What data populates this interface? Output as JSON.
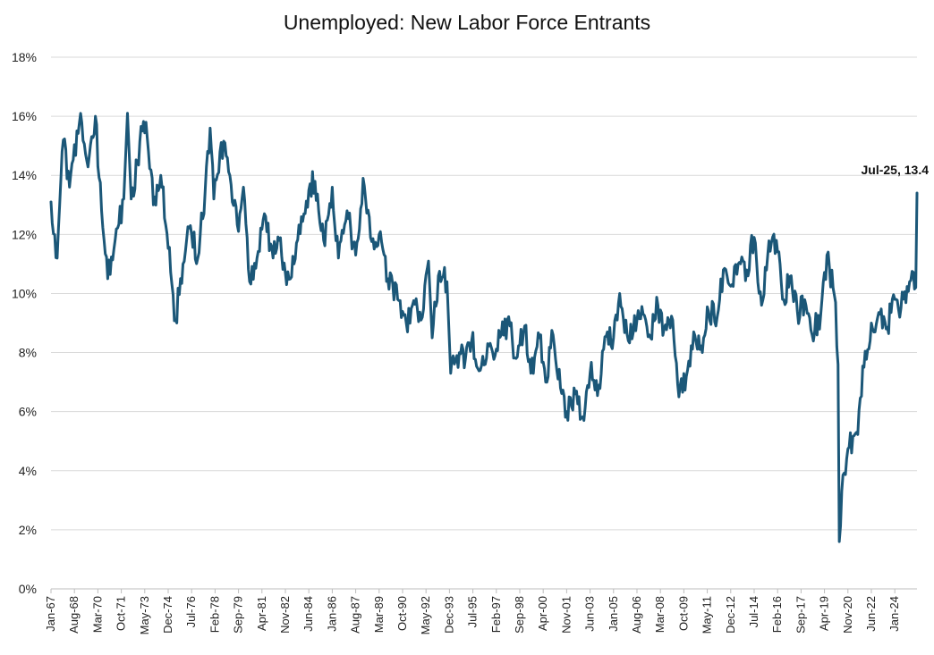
{
  "chart_data": {
    "type": "line",
    "title": "Unemployed: New Labor Force Entrants",
    "xlabel": "",
    "ylabel": "",
    "ylim": [
      0,
      18
    ],
    "y_ticks": [
      "0%",
      "2%",
      "4%",
      "6%",
      "8%",
      "10%",
      "12%",
      "14%",
      "16%",
      "18%"
    ],
    "x_ticks": [
      "Jan-67",
      "Aug-68",
      "Mar-70",
      "Oct-71",
      "May-73",
      "Dec-74",
      "Jul-76",
      "Feb-78",
      "Sep-79",
      "Apr-81",
      "Nov-82",
      "Jun-84",
      "Jan-86",
      "Aug-87",
      "Mar-89",
      "Oct-90",
      "May-92",
      "Dec-93",
      "Jul-95",
      "Feb-97",
      "Sep-98",
      "Apr-00",
      "Nov-01",
      "Jun-03",
      "Jan-05",
      "Aug-06",
      "Mar-08",
      "Oct-09",
      "May-11",
      "Dec-12",
      "Jul-14",
      "Feb-16",
      "Sep-17",
      "Apr-19",
      "Nov-20",
      "Jun-22",
      "Jan-24"
    ],
    "grid": true,
    "legend": "none",
    "line_color": "#1b5778",
    "start": "Jan-67",
    "end": "Jul-25",
    "annotation": "Jul-25, 13.4",
    "series": [
      {
        "anchors": [
          [
            "Jan-67",
            13.1
          ],
          [
            "Jun-67",
            11.2
          ],
          [
            "Nov-67",
            15.2
          ],
          [
            "Apr-68",
            13.6
          ],
          [
            "Jan-69",
            16.1
          ],
          [
            "Jun-69",
            14.5
          ],
          [
            "Jan-70",
            16.0
          ],
          [
            "Jun-70",
            12.8
          ],
          [
            "Nov-70",
            10.5
          ],
          [
            "Apr-71",
            11.5
          ],
          [
            "Dec-71",
            13.2
          ],
          [
            "Mar-72",
            16.1
          ],
          [
            "Jun-72",
            13.2
          ],
          [
            "Mar-73",
            15.5
          ],
          [
            "Jun-73",
            15.8
          ],
          [
            "Dec-73",
            13.0
          ],
          [
            "Jun-74",
            14.0
          ],
          [
            "Jun-75",
            9.1
          ],
          [
            "Dec-75",
            11.0
          ],
          [
            "Jun-76",
            12.3
          ],
          [
            "Dec-76",
            11.2
          ],
          [
            "Jun-77",
            13.5
          ],
          [
            "Oct-77",
            15.6
          ],
          [
            "Jan-78",
            13.2
          ],
          [
            "Jun-78",
            14.8
          ],
          [
            "Oct-78",
            15.1
          ],
          [
            "Feb-79",
            14.0
          ],
          [
            "Sep-79",
            12.1
          ],
          [
            "Jan-80",
            13.6
          ],
          [
            "Jun-80",
            10.4
          ],
          [
            "Dec-80",
            11.2
          ],
          [
            "Jun-81",
            12.7
          ],
          [
            "Jan-82",
            11.2
          ],
          [
            "Jun-82",
            11.8
          ],
          [
            "Dec-82",
            10.3
          ],
          [
            "Jun-83",
            11.0
          ],
          [
            "Dec-83",
            12.6
          ],
          [
            "Jun-84",
            13.5
          ],
          [
            "Nov-84",
            13.8
          ],
          [
            "Jun-85",
            11.8
          ],
          [
            "Jan-86",
            13.6
          ],
          [
            "Jun-86",
            11.2
          ],
          [
            "Jan-87",
            12.8
          ],
          [
            "Aug-87",
            11.3
          ],
          [
            "Feb-88",
            13.9
          ],
          [
            "Aug-88",
            11.9
          ],
          [
            "Mar-89",
            12.0
          ],
          [
            "Oct-89",
            10.5
          ],
          [
            "Jun-90",
            9.8
          ],
          [
            "Jan-91",
            9.0
          ],
          [
            "Jun-91",
            9.6
          ],
          [
            "Jan-92",
            9.1
          ],
          [
            "Jul-92",
            11.1
          ],
          [
            "Oct-92",
            8.5
          ],
          [
            "Mar-93",
            10.6
          ],
          [
            "Oct-93",
            10.4
          ],
          [
            "Jan-94",
            7.3
          ],
          [
            "Jun-94",
            7.9
          ],
          [
            "Jan-95",
            7.8
          ],
          [
            "Jun-95",
            8.4
          ],
          [
            "Jan-96",
            7.4
          ],
          [
            "Jul-96",
            8.3
          ],
          [
            "Jan-97",
            7.9
          ],
          [
            "Jun-97",
            8.6
          ],
          [
            "Jan-98",
            8.9
          ],
          [
            "Jun-98",
            7.8
          ],
          [
            "Jan-99",
            8.9
          ],
          [
            "Jun-99",
            7.3
          ],
          [
            "Jan-00",
            8.5
          ],
          [
            "Jun-00",
            7.0
          ],
          [
            "Dec-00",
            8.6
          ],
          [
            "Jun-01",
            6.8
          ],
          [
            "Nov-01",
            6.0
          ],
          [
            "Jun-02",
            6.6
          ],
          [
            "Jan-03",
            5.7
          ],
          [
            "Jun-03",
            7.3
          ],
          [
            "Jan-04",
            6.9
          ],
          [
            "Aug-04",
            8.7
          ],
          [
            "Jan-05",
            8.5
          ],
          [
            "Jun-05",
            10.0
          ],
          [
            "Jan-06",
            8.4
          ],
          [
            "Aug-06",
            9.1
          ],
          [
            "Jan-07",
            9.3
          ],
          [
            "Jun-07",
            8.6
          ],
          [
            "Jan-08",
            9.6
          ],
          [
            "Jun-08",
            8.8
          ],
          [
            "Jan-09",
            9.1
          ],
          [
            "Jun-09",
            6.5
          ],
          [
            "Jan-10",
            7.4
          ],
          [
            "Jun-10",
            8.7
          ],
          [
            "Jan-11",
            8.0
          ],
          [
            "Jun-11",
            9.4
          ],
          [
            "Jan-12",
            9.2
          ],
          [
            "Jun-12",
            10.8
          ],
          [
            "Jan-13",
            10.3
          ],
          [
            "Jun-13",
            11.0
          ],
          [
            "Jan-14",
            10.8
          ],
          [
            "Jul-14",
            11.9
          ],
          [
            "Jan-15",
            9.6
          ],
          [
            "Jun-15",
            11.3
          ],
          [
            "Jan-16",
            11.8
          ],
          [
            "Jun-16",
            9.8
          ],
          [
            "Jan-17",
            10.6
          ],
          [
            "Jun-17",
            9.4
          ],
          [
            "Jan-18",
            9.6
          ],
          [
            "Jun-18",
            8.6
          ],
          [
            "Jan-19",
            9.3
          ],
          [
            "Jun-19",
            11.3
          ],
          [
            "Jan-20",
            9.7
          ],
          [
            "Mar-20",
            7.6
          ],
          [
            "Apr-20",
            1.6
          ],
          [
            "Jun-20",
            3.3
          ],
          [
            "Dec-20",
            4.8
          ],
          [
            "Jun-21",
            5.3
          ],
          [
            "Dec-21",
            7.5
          ],
          [
            "Jun-22",
            9.0
          ],
          [
            "Jan-23",
            9.3
          ],
          [
            "Jun-23",
            8.8
          ],
          [
            "Jan-24",
            9.8
          ],
          [
            "Jun-24",
            9.5
          ],
          [
            "Jan-25",
            10.4
          ],
          [
            "Jun-25",
            10.2
          ],
          [
            "Jul-25",
            13.4
          ]
        ]
      }
    ]
  }
}
